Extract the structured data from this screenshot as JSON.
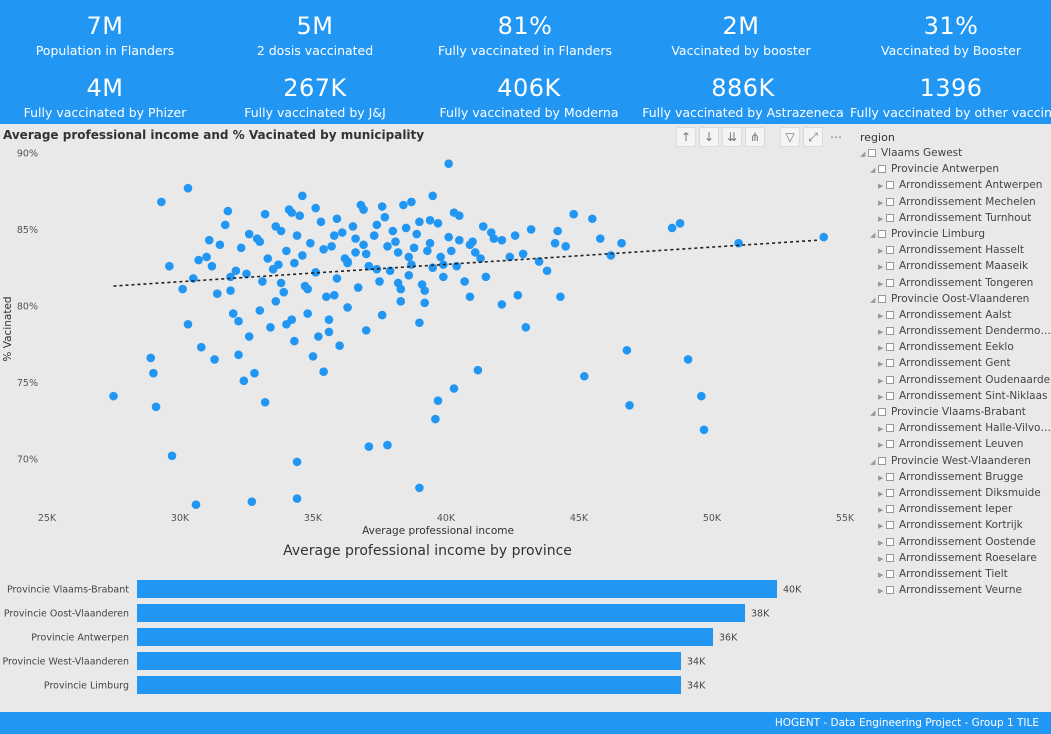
{
  "kpis_row1": [
    {
      "value": "7M",
      "label": "Population in Flanders"
    },
    {
      "value": "5M",
      "label": "2 dosis vaccinated"
    },
    {
      "value": "81%",
      "label": "Fully vaccinated in Flanders"
    },
    {
      "value": "2M",
      "label": "Vaccinated by booster"
    },
    {
      "value": "31%",
      "label": "Vaccinated by Booster"
    }
  ],
  "kpis_row2": [
    {
      "value": "4M",
      "label": "Fully vaccinated by Phizer"
    },
    {
      "value": "267K",
      "label": "Fully vaccinated by J&J"
    },
    {
      "value": "406K",
      "label": "Fully vaccinated by Moderna"
    },
    {
      "value": "886K",
      "label": "Fully vaccinated by Astrazeneca"
    },
    {
      "value": "1396",
      "label": "Fully vaccinated by other vaccin"
    }
  ],
  "toolbar": {
    "icons": [
      "arrow-up-icon",
      "arrow-down-icon",
      "double-arrow-down-icon",
      "expand-hierarchy-icon",
      "filter-icon",
      "focus-mode-icon",
      "more-options-icon"
    ]
  },
  "slicer": {
    "title": "region",
    "nodes": [
      {
        "label": "Vlaams Gewest",
        "level": 0
      },
      {
        "label": "Provincie Antwerpen",
        "level": 1
      },
      {
        "label": "Arrondissement Antwerpen",
        "level": 2
      },
      {
        "label": "Arrondissement Mechelen",
        "level": 2
      },
      {
        "label": "Arrondissement Turnhout",
        "level": 2
      },
      {
        "label": "Provincie Limburg",
        "level": 1
      },
      {
        "label": "Arrondissement Hasselt",
        "level": 2
      },
      {
        "label": "Arrondissement Maaseik",
        "level": 2
      },
      {
        "label": "Arrondissement Tongeren",
        "level": 2
      },
      {
        "label": "Provincie Oost-Vlaanderen",
        "level": 1
      },
      {
        "label": "Arrondissement Aalst",
        "level": 2
      },
      {
        "label": "Arrondissement Dendermon...",
        "level": 2
      },
      {
        "label": "Arrondissement Eeklo",
        "level": 2
      },
      {
        "label": "Arrondissement Gent",
        "level": 2
      },
      {
        "label": "Arrondissement Oudenaarde",
        "level": 2
      },
      {
        "label": "Arrondissement Sint-Niklaas",
        "level": 2
      },
      {
        "label": "Provincie Vlaams-Brabant",
        "level": 1
      },
      {
        "label": "Arrondissement Halle-Vilvoo...",
        "level": 2
      },
      {
        "label": "Arrondissement Leuven",
        "level": 2
      },
      {
        "label": "Provincie West-Vlaanderen",
        "level": 1
      },
      {
        "label": "Arrondissement Brugge",
        "level": 2
      },
      {
        "label": "Arrondissement Diksmuide",
        "level": 2
      },
      {
        "label": "Arrondissement Ieper",
        "level": 2
      },
      {
        "label": "Arrondissement Kortrijk",
        "level": 2
      },
      {
        "label": "Arrondissement Oostende",
        "level": 2
      },
      {
        "label": "Arrondissement Roeselare",
        "level": 2
      },
      {
        "label": "Arrondissement Tielt",
        "level": 2
      },
      {
        "label": "Arrondissement Veurne",
        "level": 2
      }
    ]
  },
  "colors": {
    "accent": "#2196f3",
    "point": "#2196f3",
    "trend": "#222222"
  },
  "footer": {
    "text": "HOGENT - Data Engineering Project - Group 1 TILE"
  },
  "chart_data": [
    {
      "type": "scatter",
      "title": "Average professional income and % Vacinated by municipality",
      "xlabel": "Average professional income",
      "ylabel": "% Vacinated",
      "xlim": [
        25000,
        55000
      ],
      "ylim": [
        66,
        90
      ],
      "xticks": [
        {
          "v": 25000,
          "label": "25K"
        },
        {
          "v": 30000,
          "label": "30K"
        },
        {
          "v": 35000,
          "label": "35K"
        },
        {
          "v": 40000,
          "label": "40K"
        },
        {
          "v": 45000,
          "label": "45K"
        },
        {
          "v": 50000,
          "label": "50K"
        },
        {
          "v": 55000,
          "label": "55K"
        }
      ],
      "yticks": [
        {
          "v": 70,
          "label": "70%"
        },
        {
          "v": 75,
          "label": "75%"
        },
        {
          "v": 80,
          "label": "80%"
        },
        {
          "v": 85,
          "label": "85%"
        },
        {
          "v": 90,
          "label": "90%"
        }
      ],
      "trendline": [
        [
          27500,
          81.3
        ],
        [
          54000,
          84.3
        ]
      ],
      "points": [
        [
          27500,
          74.1
        ],
        [
          28900,
          76.6
        ],
        [
          29000,
          75.6
        ],
        [
          29100,
          73.4
        ],
        [
          29300,
          86.8
        ],
        [
          29600,
          82.6
        ],
        [
          29700,
          70.2
        ],
        [
          30300,
          87.7
        ],
        [
          30100,
          81.1
        ],
        [
          30300,
          78.8
        ],
        [
          30600,
          67.0
        ],
        [
          30800,
          77.3
        ],
        [
          31000,
          83.2
        ],
        [
          31300,
          76.5
        ],
        [
          31500,
          84.0
        ],
        [
          31800,
          86.2
        ],
        [
          31900,
          81.0
        ],
        [
          32000,
          79.5
        ],
        [
          32100,
          82.3
        ],
        [
          32200,
          76.8
        ],
        [
          32400,
          75.1
        ],
        [
          32600,
          78.0
        ],
        [
          32800,
          75.6
        ],
        [
          32700,
          67.2
        ],
        [
          33000,
          84.2
        ],
        [
          33200,
          73.7
        ],
        [
          33400,
          78.6
        ],
        [
          33600,
          80.3
        ],
        [
          33800,
          81.5
        ],
        [
          34000,
          83.6
        ],
        [
          34200,
          79.1
        ],
        [
          34300,
          77.7
        ],
        [
          34400,
          69.8
        ],
        [
          34400,
          67.4
        ],
        [
          34600,
          87.2
        ],
        [
          34800,
          81.1
        ],
        [
          35000,
          76.7
        ],
        [
          35200,
          78.0
        ],
        [
          35400,
          75.7
        ],
        [
          35600,
          79.1
        ],
        [
          35800,
          80.7
        ],
        [
          36000,
          77.4
        ],
        [
          36300,
          82.8
        ],
        [
          36600,
          84.4
        ],
        [
          36900,
          86.3
        ],
        [
          37100,
          70.8
        ],
        [
          37400,
          82.4
        ],
        [
          37600,
          79.4
        ],
        [
          37800,
          70.9
        ],
        [
          38000,
          84.9
        ],
        [
          38200,
          81.5
        ],
        [
          38400,
          86.6
        ],
        [
          38600,
          82.0
        ],
        [
          38800,
          83.8
        ],
        [
          39000,
          78.9
        ],
        [
          39200,
          81.0
        ],
        [
          39000,
          68.1
        ],
        [
          39500,
          87.2
        ],
        [
          39700,
          73.8
        ],
        [
          39600,
          72.6
        ],
        [
          39900,
          82.7
        ],
        [
          40100,
          89.3
        ],
        [
          40300,
          74.6
        ],
        [
          40500,
          84.3
        ],
        [
          40700,
          81.6
        ],
        [
          40900,
          80.6
        ],
        [
          41100,
          83.5
        ],
        [
          41200,
          75.8
        ],
        [
          41500,
          81.9
        ],
        [
          41800,
          84.4
        ],
        [
          42100,
          80.1
        ],
        [
          42400,
          83.2
        ],
        [
          42700,
          80.7
        ],
        [
          42900,
          83.4
        ],
        [
          43200,
          85.0
        ],
        [
          43000,
          78.6
        ],
        [
          43500,
          82.9
        ],
        [
          43800,
          82.3
        ],
        [
          44100,
          84.1
        ],
        [
          44300,
          80.6
        ],
        [
          44500,
          83.9
        ],
        [
          44800,
          86.0
        ],
        [
          45200,
          75.4
        ],
        [
          45500,
          85.7
        ],
        [
          45800,
          84.4
        ],
        [
          46200,
          83.3
        ],
        [
          46600,
          84.1
        ],
        [
          46800,
          77.1
        ],
        [
          46900,
          73.5
        ],
        [
          48500,
          85.1
        ],
        [
          48800,
          85.4
        ],
        [
          49100,
          76.5
        ],
        [
          49600,
          74.1
        ],
        [
          49700,
          71.9
        ],
        [
          51000,
          84.1
        ],
        [
          54200,
          84.5
        ],
        [
          30700,
          83.0
        ],
        [
          31200,
          82.6
        ],
        [
          31700,
          85.3
        ],
        [
          32300,
          83.8
        ],
        [
          32900,
          84.4
        ],
        [
          33300,
          83.1
        ],
        [
          33700,
          82.7
        ],
        [
          34100,
          86.3
        ],
        [
          34500,
          85.9
        ],
        [
          34900,
          84.1
        ],
        [
          35300,
          85.5
        ],
        [
          35700,
          83.9
        ],
        [
          36100,
          84.8
        ],
        [
          36500,
          85.2
        ],
        [
          36900,
          84.0
        ],
        [
          37300,
          84.6
        ],
        [
          37700,
          85.8
        ],
        [
          38100,
          84.2
        ],
        [
          38500,
          85.1
        ],
        [
          38900,
          84.7
        ],
        [
          39300,
          83.6
        ],
        [
          39700,
          85.4
        ],
        [
          40100,
          84.5
        ],
        [
          40500,
          85.9
        ],
        [
          40900,
          84.0
        ],
        [
          41300,
          83.1
        ],
        [
          41700,
          84.8
        ],
        [
          42100,
          84.3
        ],
        [
          42600,
          84.6
        ],
        [
          31400,
          80.8
        ],
        [
          31900,
          81.9
        ],
        [
          32500,
          82.1
        ],
        [
          33100,
          81.6
        ],
        [
          33500,
          82.4
        ],
        [
          33900,
          80.9
        ],
        [
          34300,
          82.8
        ],
        [
          34700,
          81.3
        ],
        [
          35100,
          82.2
        ],
        [
          35500,
          80.6
        ],
        [
          35900,
          81.8
        ],
        [
          36300,
          82.9
        ],
        [
          36700,
          81.2
        ],
        [
          37100,
          82.6
        ],
        [
          37500,
          81.6
        ],
        [
          37900,
          82.3
        ],
        [
          38300,
          81.1
        ],
        [
          38700,
          82.7
        ],
        [
          39100,
          81.4
        ],
        [
          39500,
          82.5
        ],
        [
          39900,
          81.9
        ],
        [
          40400,
          82.6
        ],
        [
          32200,
          79.0
        ],
        [
          33000,
          79.7
        ],
        [
          34000,
          78.8
        ],
        [
          34800,
          79.5
        ],
        [
          35600,
          78.3
        ],
        [
          36300,
          79.9
        ],
        [
          37000,
          78.4
        ],
        [
          38300,
          80.3
        ],
        [
          39200,
          80.2
        ],
        [
          33200,
          86.0
        ],
        [
          34200,
          86.1
        ],
        [
          35100,
          86.4
        ],
        [
          35900,
          85.7
        ],
        [
          36800,
          86.6
        ],
        [
          37600,
          86.5
        ],
        [
          38700,
          86.8
        ],
        [
          39400,
          85.6
        ],
        [
          40300,
          86.1
        ],
        [
          33800,
          84.9
        ],
        [
          34600,
          83.3
        ],
        [
          35400,
          83.7
        ],
        [
          36200,
          83.1
        ],
        [
          37000,
          83.4
        ],
        [
          37800,
          83.9
        ],
        [
          38600,
          83.2
        ],
        [
          39400,
          84.1
        ],
        [
          40200,
          83.6
        ],
        [
          41000,
          84.2
        ],
        [
          30500,
          81.8
        ],
        [
          31100,
          84.3
        ],
        [
          32600,
          84.7
        ],
        [
          33600,
          85.2
        ],
        [
          34400,
          84.6
        ],
        [
          35800,
          84.6
        ],
        [
          36600,
          83.5
        ],
        [
          37400,
          85.3
        ],
        [
          38200,
          83.5
        ],
        [
          39000,
          85.5
        ],
        [
          39800,
          83.2
        ],
        [
          41400,
          85.2
        ],
        [
          44200,
          84.9
        ]
      ]
    },
    {
      "type": "bar",
      "title": "Average professional income by province",
      "xlim": [
        0,
        40000
      ],
      "categories": [
        "Provincie Vlaams-Brabant",
        "Provincie Oost-Vlaanderen",
        "Provincie Antwerpen",
        "Provincie West-Vlaanderen",
        "Provincie Limburg"
      ],
      "values": [
        40000,
        38000,
        36000,
        34000,
        34000
      ],
      "value_labels": [
        "40K",
        "38K",
        "36K",
        "34K",
        "34K"
      ]
    }
  ]
}
